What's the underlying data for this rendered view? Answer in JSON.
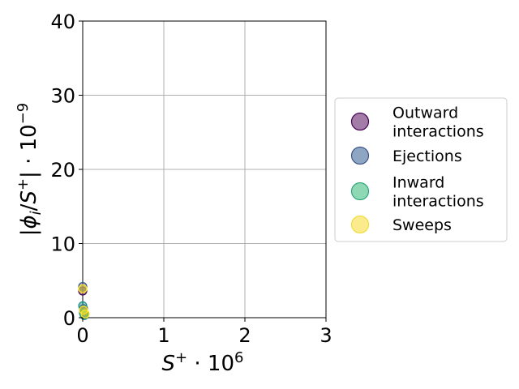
{
  "chart_data": {
    "type": "scatter",
    "xlabel": "S⁺·10⁶",
    "ylabel": "|φᵢ/S⁺|·10⁻⁹",
    "xlim": [
      0,
      3
    ],
    "ylim": [
      0,
      40
    ],
    "x_ticks": [
      "0",
      "1",
      "2",
      "3"
    ],
    "y_ticks": [
      "0",
      "10",
      "20",
      "30",
      "40"
    ],
    "grid": true,
    "legend_position": "right, outside plot",
    "series": [
      {
        "name": "Outward interactions",
        "name_lines": [
          "Outward",
          "interactions"
        ],
        "color": "#440154",
        "points": [
          [
            0.0,
            3.6
          ],
          [
            0.01,
            0.9
          ],
          [
            0.02,
            0.4
          ]
        ]
      },
      {
        "name": "Ejections",
        "name_lines": [
          "Ejections"
        ],
        "color": "#3b528b",
        "points": [
          [
            0.0,
            4.2
          ],
          [
            0.01,
            1.2
          ],
          [
            0.02,
            0.5
          ]
        ]
      },
      {
        "name": "Inward interactions",
        "name_lines": [
          "Inward",
          "interactions"
        ],
        "color": "#21918c",
        "points": [
          [
            0.0,
            1.6
          ],
          [
            0.01,
            0.6
          ],
          [
            0.02,
            0.3
          ]
        ]
      },
      {
        "name": "Sweeps",
        "name_lines": [
          "Sweeps"
        ],
        "color": "#fde725",
        "points": [
          [
            0.0,
            3.9
          ],
          [
            0.01,
            1.0
          ],
          [
            0.03,
            0.5
          ]
        ]
      }
    ],
    "legend_fill": [
      "#a47ca8",
      "#8fa6c3",
      "#8fd8b5",
      "#fbeb8c"
    ],
    "legend_edge": [
      "#440154",
      "#3b528b",
      "#2fa77a",
      "#f0dc40"
    ]
  }
}
